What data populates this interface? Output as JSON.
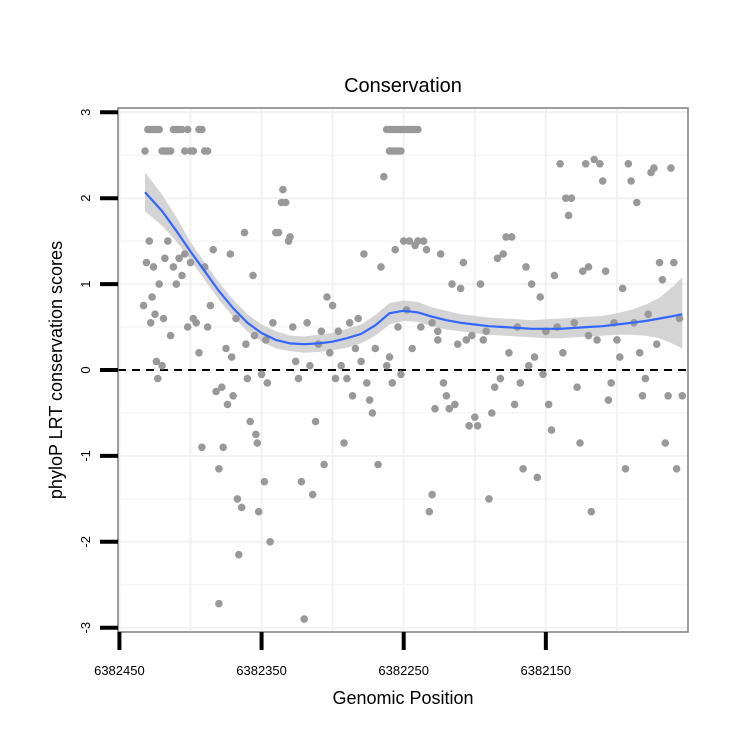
{
  "chart_data": {
    "type": "scatter",
    "title": "Conservation",
    "xlabel": "Genomic Position",
    "ylabel": "phyloP LRT conservation scores",
    "x_reversed": true,
    "xlim": [
      6382451,
      6382050
    ],
    "ylim": [
      -3.05,
      3.05
    ],
    "x_ticks": [
      6382450,
      6382350,
      6382250,
      6382150
    ],
    "x_tick_labels": [
      "6382450",
      "6382350",
      "6382250",
      "6382150"
    ],
    "y_ticks": [
      -3,
      -2,
      -1,
      0,
      1,
      2,
      3
    ],
    "y_tick_labels": [
      "-3",
      "-2",
      "-1",
      "0",
      "1",
      "2",
      "3"
    ],
    "grid": true,
    "reference_line": {
      "y": 0,
      "style": "dashed",
      "color": "#000000"
    },
    "colors": {
      "points": "#999999",
      "smooth": "#3366ff",
      "band": "#cccccc",
      "frame": "#7f7f7f",
      "grid": "#f2f2f2"
    },
    "points": [
      [
        6382432,
        2.55
      ],
      [
        6382430,
        2.8
      ],
      [
        6382428,
        2.8
      ],
      [
        6382426,
        2.8
      ],
      [
        6382424,
        2.8
      ],
      [
        6382422,
        2.8
      ],
      [
        6382420,
        2.55
      ],
      [
        6382418,
        2.55
      ],
      [
        6382416,
        2.55
      ],
      [
        6382414,
        2.55
      ],
      [
        6382412,
        2.8
      ],
      [
        6382410,
        2.8
      ],
      [
        6382408,
        2.8
      ],
      [
        6382406,
        2.8
      ],
      [
        6382404,
        2.55
      ],
      [
        6382402,
        2.8
      ],
      [
        6382400,
        2.55
      ],
      [
        6382398,
        2.55
      ],
      [
        6382394,
        2.8
      ],
      [
        6382392,
        2.8
      ],
      [
        6382390,
        2.55
      ],
      [
        6382388,
        2.55
      ],
      [
        6382433,
        0.75
      ],
      [
        6382431,
        1.25
      ],
      [
        6382429,
        1.5
      ],
      [
        6382428,
        0.55
      ],
      [
        6382427,
        0.85
      ],
      [
        6382426,
        1.2
      ],
      [
        6382425,
        0.65
      ],
      [
        6382424,
        0.1
      ],
      [
        6382423,
        -0.1
      ],
      [
        6382422,
        1.0
      ],
      [
        6382420,
        0.05
      ],
      [
        6382419,
        0.6
      ],
      [
        6382418,
        1.3
      ],
      [
        6382416,
        1.5
      ],
      [
        6382414,
        0.4
      ],
      [
        6382412,
        1.2
      ],
      [
        6382410,
        1.0
      ],
      [
        6382408,
        1.3
      ],
      [
        6382406,
        1.1
      ],
      [
        6382404,
        1.35
      ],
      [
        6382402,
        0.5
      ],
      [
        6382400,
        1.25
      ],
      [
        6382398,
        0.6
      ],
      [
        6382396,
        0.55
      ],
      [
        6382394,
        0.2
      ],
      [
        6382392,
        -0.9
      ],
      [
        6382390,
        1.2
      ],
      [
        6382388,
        0.5
      ],
      [
        6382386,
        0.75
      ],
      [
        6382384,
        1.4
      ],
      [
        6382382,
        -0.25
      ],
      [
        6382380,
        -1.15
      ],
      [
        6382378,
        -0.2
      ],
      [
        6382377,
        -0.9
      ],
      [
        6382375,
        0.25
      ],
      [
        6382374,
        -0.4
      ],
      [
        6382372,
        1.35
      ],
      [
        6382371,
        0.15
      ],
      [
        6382370,
        -0.3
      ],
      [
        6382368,
        0.6
      ],
      [
        6382367,
        -1.5
      ],
      [
        6382366,
        -2.15
      ],
      [
        6382364,
        -1.6
      ],
      [
        6382362,
        1.6
      ],
      [
        6382361,
        0.3
      ],
      [
        6382360,
        -0.1
      ],
      [
        6382358,
        -0.6
      ],
      [
        6382356,
        1.1
      ],
      [
        6382355,
        0.4
      ],
      [
        6382354,
        -0.75
      ],
      [
        6382353,
        -0.85
      ],
      [
        6382352,
        -1.65
      ],
      [
        6382350,
        -0.05
      ],
      [
        6382348,
        -1.3
      ],
      [
        6382347,
        0.35
      ],
      [
        6382346,
        -0.15
      ],
      [
        6382344,
        -2.0
      ],
      [
        6382342,
        0.55
      ],
      [
        6382340,
        1.6
      ],
      [
        6382338,
        1.6
      ],
      [
        6382336,
        1.95
      ],
      [
        6382335,
        2.1
      ],
      [
        6382333,
        1.95
      ],
      [
        6382331,
        1.5
      ],
      [
        6382330,
        1.55
      ],
      [
        6382328,
        0.5
      ],
      [
        6382326,
        0.1
      ],
      [
        6382324,
        -0.1
      ],
      [
        6382322,
        -1.3
      ],
      [
        6382320,
        -2.9
      ],
      [
        6382318,
        0.55
      ],
      [
        6382316,
        0.05
      ],
      [
        6382314,
        -1.45
      ],
      [
        6382312,
        -0.6
      ],
      [
        6382310,
        0.3
      ],
      [
        6382308,
        0.45
      ],
      [
        6382306,
        -1.1
      ],
      [
        6382304,
        0.85
      ],
      [
        6382302,
        0.2
      ],
      [
        6382300,
        0.75
      ],
      [
        6382298,
        -0.1
      ],
      [
        6382296,
        0.45
      ],
      [
        6382294,
        0.05
      ],
      [
        6382292,
        -0.85
      ],
      [
        6382290,
        -0.1
      ],
      [
        6382288,
        0.55
      ],
      [
        6382286,
        -0.3
      ],
      [
        6382284,
        0.25
      ],
      [
        6382282,
        0.6
      ],
      [
        6382280,
        0.1
      ],
      [
        6382278,
        1.35
      ],
      [
        6382276,
        -0.15
      ],
      [
        6382274,
        -0.35
      ],
      [
        6382272,
        -0.5
      ],
      [
        6382270,
        0.25
      ],
      [
        6382268,
        -1.1
      ],
      [
        6382266,
        1.2
      ],
      [
        6382264,
        2.25
      ],
      [
        6382262,
        0.05
      ],
      [
        6382260,
        0.15
      ],
      [
        6382258,
        -0.15
      ],
      [
        6382256,
        1.4
      ],
      [
        6382254,
        0.5
      ],
      [
        6382252,
        -0.05
      ],
      [
        6382250,
        1.5
      ],
      [
        6382248,
        0.7
      ],
      [
        6382246,
        1.5
      ],
      [
        6382244,
        0.25
      ],
      [
        6382242,
        1.45
      ],
      [
        6382240,
        1.5
      ],
      [
        6382238,
        0.5
      ],
      [
        6382236,
        1.5
      ],
      [
        6382234,
        1.4
      ],
      [
        6382232,
        -1.65
      ],
      [
        6382230,
        -1.45
      ],
      [
        6382228,
        -0.45
      ],
      [
        6382226,
        0.35
      ],
      [
        6382224,
        1.35
      ],
      [
        6382222,
        -0.15
      ],
      [
        6382220,
        -0.3
      ],
      [
        6382218,
        -0.45
      ],
      [
        6382216,
        1.0
      ],
      [
        6382214,
        -0.4
      ],
      [
        6382212,
        0.3
      ],
      [
        6382210,
        0.95
      ],
      [
        6382208,
        1.25
      ],
      [
        6382206,
        0.35
      ],
      [
        6382204,
        -0.65
      ],
      [
        6382202,
        0.4
      ],
      [
        6382200,
        -0.55
      ],
      [
        6382198,
        -0.65
      ],
      [
        6382196,
        1.0
      ],
      [
        6382194,
        0.35
      ],
      [
        6382192,
        0.45
      ],
      [
        6382190,
        -1.5
      ],
      [
        6382188,
        -0.5
      ],
      [
        6382186,
        -0.2
      ],
      [
        6382184,
        1.3
      ],
      [
        6382182,
        -0.1
      ],
      [
        6382180,
        1.35
      ],
      [
        6382178,
        1.55
      ],
      [
        6382176,
        0.2
      ],
      [
        6382174,
        1.55
      ],
      [
        6382172,
        -0.4
      ],
      [
        6382170,
        0.5
      ],
      [
        6382168,
        -0.15
      ],
      [
        6382166,
        -1.15
      ],
      [
        6382164,
        1.2
      ],
      [
        6382162,
        0.05
      ],
      [
        6382160,
        1.0
      ],
      [
        6382158,
        0.15
      ],
      [
        6382156,
        -1.25
      ],
      [
        6382154,
        0.85
      ],
      [
        6382152,
        -0.05
      ],
      [
        6382150,
        0.45
      ],
      [
        6382148,
        -0.4
      ],
      [
        6382146,
        -0.7
      ],
      [
        6382144,
        1.1
      ],
      [
        6382142,
        0.5
      ],
      [
        6382140,
        2.4
      ],
      [
        6382138,
        0.2
      ],
      [
        6382136,
        2.0
      ],
      [
        6382134,
        1.8
      ],
      [
        6382132,
        2.0
      ],
      [
        6382130,
        0.55
      ],
      [
        6382128,
        -0.2
      ],
      [
        6382126,
        -0.85
      ],
      [
        6382124,
        1.15
      ],
      [
        6382122,
        2.4
      ],
      [
        6382120,
        1.2
      ],
      [
        6382118,
        -1.65
      ],
      [
        6382116,
        2.45
      ],
      [
        6382114,
        0.35
      ],
      [
        6382112,
        2.4
      ],
      [
        6382110,
        2.2
      ],
      [
        6382108,
        1.15
      ],
      [
        6382106,
        -0.35
      ],
      [
        6382104,
        -0.15
      ],
      [
        6382102,
        0.55
      ],
      [
        6382100,
        0.35
      ],
      [
        6382098,
        0.15
      ],
      [
        6382096,
        0.95
      ],
      [
        6382094,
        -1.15
      ],
      [
        6382092,
        2.4
      ],
      [
        6382090,
        2.2
      ],
      [
        6382088,
        0.55
      ],
      [
        6382086,
        1.95
      ],
      [
        6382084,
        0.2
      ],
      [
        6382082,
        -0.3
      ],
      [
        6382080,
        -0.1
      ],
      [
        6382078,
        0.65
      ],
      [
        6382076,
        2.3
      ],
      [
        6382074,
        2.35
      ],
      [
        6382072,
        0.3
      ],
      [
        6382070,
        1.25
      ],
      [
        6382068,
        1.05
      ],
      [
        6382066,
        -0.85
      ],
      [
        6382064,
        -0.3
      ],
      [
        6382062,
        2.35
      ],
      [
        6382060,
        1.25
      ],
      [
        6382058,
        -1.15
      ],
      [
        6382056,
        0.6
      ],
      [
        6382054,
        -0.3
      ],
      [
        6382262,
        2.8
      ],
      [
        6382260,
        2.8
      ],
      [
        6382258,
        2.8
      ],
      [
        6382256,
        2.8
      ],
      [
        6382254,
        2.8
      ],
      [
        6382252,
        2.8
      ],
      [
        6382250,
        2.8
      ],
      [
        6382248,
        2.8
      ],
      [
        6382246,
        2.8
      ],
      [
        6382244,
        2.8
      ],
      [
        6382242,
        2.8
      ],
      [
        6382240,
        2.8
      ],
      [
        6382260,
        2.55
      ],
      [
        6382258,
        2.55
      ],
      [
        6382256,
        2.55
      ],
      [
        6382254,
        2.55
      ],
      [
        6382252,
        2.55
      ],
      [
        6382380,
        -2.72
      ],
      [
        6382230,
        0.55
      ],
      [
        6382226,
        0.45
      ],
      [
        6382120,
        0.4
      ],
      [
        6382150,
        0.45
      ]
    ],
    "smooth": {
      "x": [
        6382432,
        6382420,
        6382410,
        6382400,
        6382390,
        6382380,
        6382370,
        6382360,
        6382350,
        6382340,
        6382330,
        6382320,
        6382310,
        6382300,
        6382290,
        6382280,
        6382270,
        6382260,
        6382250,
        6382240,
        6382230,
        6382220,
        6382210,
        6382200,
        6382190,
        6382180,
        6382170,
        6382160,
        6382150,
        6382140,
        6382130,
        6382120,
        6382110,
        6382100,
        6382090,
        6382080,
        6382070,
        6382060,
        6382054
      ],
      "y": [
        2.07,
        1.85,
        1.62,
        1.38,
        1.15,
        0.92,
        0.72,
        0.55,
        0.43,
        0.35,
        0.31,
        0.3,
        0.31,
        0.33,
        0.37,
        0.42,
        0.52,
        0.66,
        0.69,
        0.67,
        0.62,
        0.58,
        0.55,
        0.53,
        0.51,
        0.5,
        0.49,
        0.48,
        0.48,
        0.48,
        0.49,
        0.5,
        0.51,
        0.53,
        0.55,
        0.57,
        0.6,
        0.63,
        0.65
      ],
      "lower": [
        1.85,
        1.68,
        1.5,
        1.28,
        1.05,
        0.82,
        0.62,
        0.45,
        0.33,
        0.25,
        0.22,
        0.2,
        0.21,
        0.23,
        0.26,
        0.31,
        0.4,
        0.53,
        0.57,
        0.56,
        0.51,
        0.47,
        0.45,
        0.43,
        0.41,
        0.4,
        0.39,
        0.38,
        0.37,
        0.37,
        0.38,
        0.39,
        0.4,
        0.41,
        0.41,
        0.4,
        0.37,
        0.3,
        0.25
      ],
      "upper": [
        2.3,
        2.04,
        1.78,
        1.49,
        1.25,
        1.02,
        0.82,
        0.65,
        0.53,
        0.45,
        0.4,
        0.39,
        0.41,
        0.43,
        0.48,
        0.53,
        0.64,
        0.78,
        0.81,
        0.79,
        0.73,
        0.69,
        0.65,
        0.63,
        0.61,
        0.6,
        0.59,
        0.58,
        0.59,
        0.6,
        0.61,
        0.62,
        0.63,
        0.66,
        0.7,
        0.76,
        0.84,
        0.98,
        1.08
      ]
    }
  }
}
